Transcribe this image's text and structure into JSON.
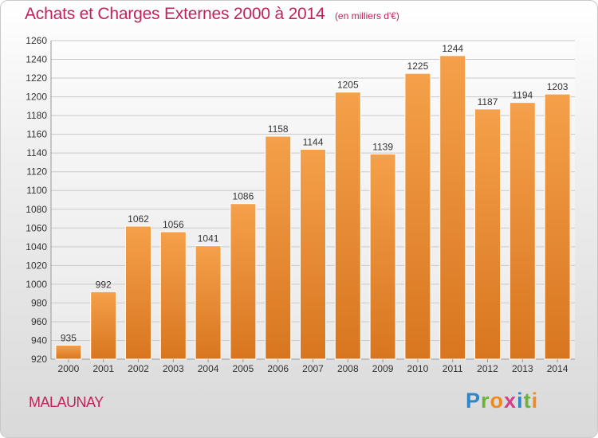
{
  "title": "Achats et Charges Externes 2000 à 2014",
  "subtitle": "(en milliers d'€)",
  "city": "MALAUNAY",
  "brand": {
    "text": "Proxiti",
    "letters": [
      {
        "char": "P",
        "color": "#2e86c9"
      },
      {
        "char": "r",
        "color": "#6bb43a"
      },
      {
        "char": "o",
        "color": "#f08a1c"
      },
      {
        "char": "x",
        "color": "#d73c8d"
      },
      {
        "char": "i",
        "color": "#2e86c9"
      },
      {
        "char": "t",
        "color": "#6bb43a"
      },
      {
        "char": "i",
        "color": "#f08a1c"
      }
    ]
  },
  "colors": {
    "bar_top": "#f5a04a",
    "bar_bottom": "#d8761f",
    "bar_stroke": "#ffffff",
    "accent": "#c0235c",
    "grid": "#c9c9c9",
    "axis_text": "#333333"
  },
  "chart_data": {
    "type": "bar",
    "categories": [
      "2000",
      "2001",
      "2002",
      "2003",
      "2004",
      "2005",
      "2006",
      "2007",
      "2008",
      "2009",
      "2010",
      "2011",
      "2012",
      "2013",
      "2014"
    ],
    "values": [
      935,
      992,
      1062,
      1056,
      1041,
      1086,
      1158,
      1144,
      1205,
      1139,
      1225,
      1244,
      1187,
      1194,
      1203
    ],
    "ylim": [
      920,
      1260
    ],
    "yticks": [
      920,
      940,
      960,
      980,
      1000,
      1020,
      1040,
      1060,
      1080,
      1100,
      1120,
      1140,
      1160,
      1180,
      1200,
      1220,
      1240,
      1260
    ],
    "grid": true,
    "data_labels": true
  }
}
